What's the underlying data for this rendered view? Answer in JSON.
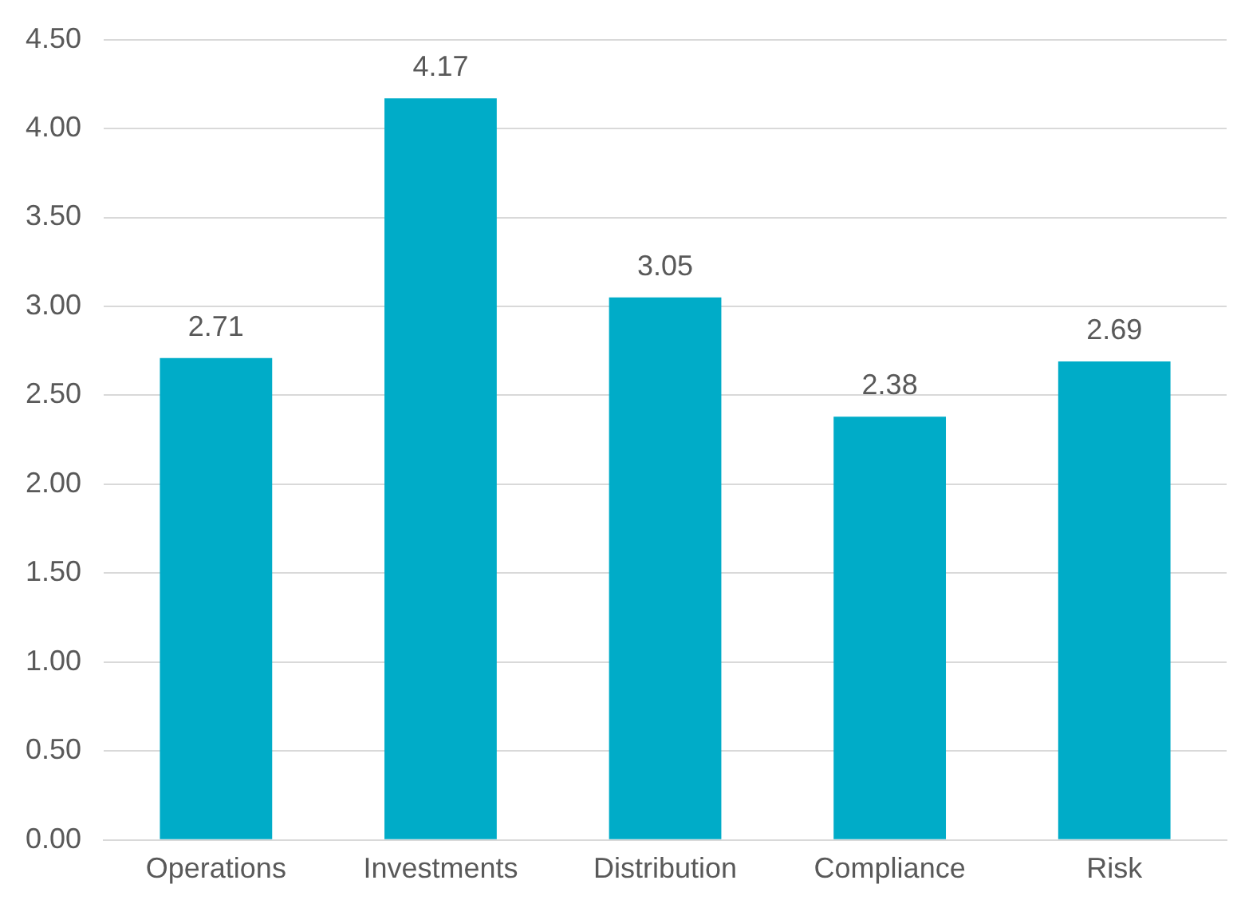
{
  "chart_data": {
    "type": "bar",
    "categories": [
      "Operations",
      "Investments",
      "Distribution",
      "Compliance",
      "Risk"
    ],
    "values": [
      2.71,
      4.17,
      3.05,
      2.38,
      2.69
    ],
    "color": "#00acc8",
    "ylim": [
      0,
      4.5
    ],
    "yticks": [
      {
        "value": 0,
        "label": "0.00"
      },
      {
        "value": 0.5,
        "label": "0.50"
      },
      {
        "value": 1,
        "label": "1.00"
      },
      {
        "value": 1.5,
        "label": "1.50"
      },
      {
        "value": 2,
        "label": "2.00"
      },
      {
        "value": 2.5,
        "label": "2.50"
      },
      {
        "value": 3,
        "label": "3.00"
      },
      {
        "value": 3.5,
        "label": "3.50"
      },
      {
        "value": 4,
        "label": "4.00"
      },
      {
        "value": 4.5,
        "label": "4.50"
      }
    ],
    "grid": "y",
    "legend": false,
    "value_labels": [
      "2.71",
      "4.17",
      "3.05",
      "2.38",
      "2.69"
    ]
  }
}
